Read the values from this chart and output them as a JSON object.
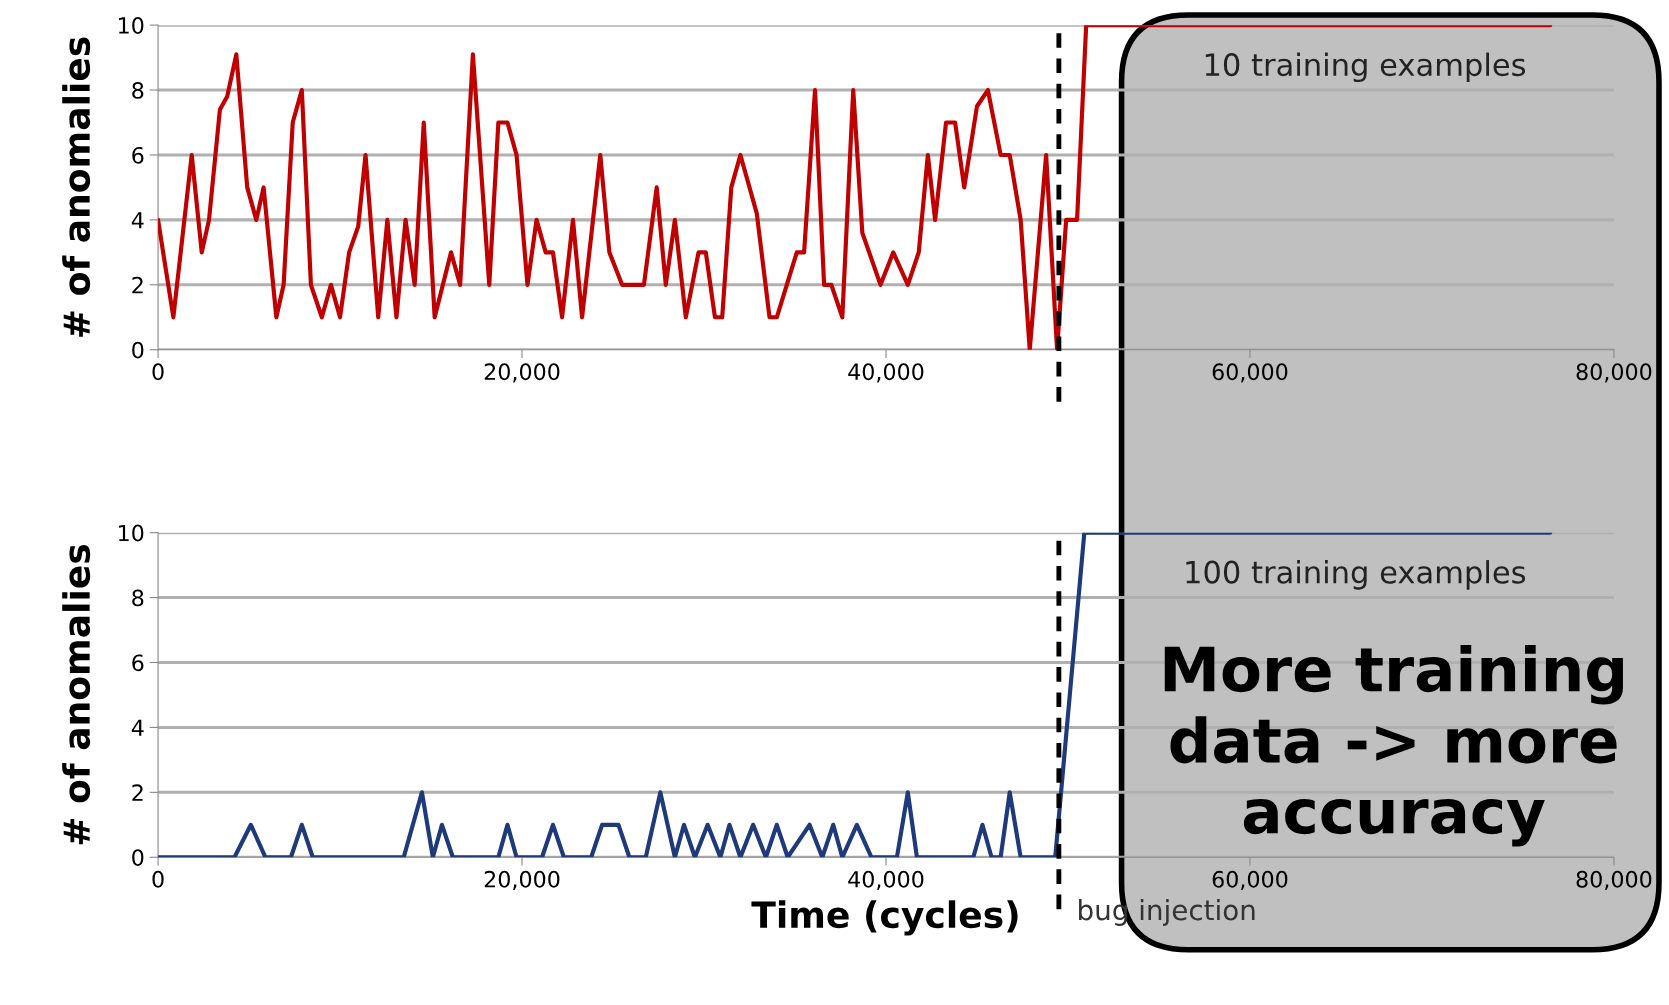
{
  "chart_data": [
    {
      "type": "line",
      "ylabel": "# of anomalies",
      "xlim": [
        0,
        80000
      ],
      "ylim": [
        0,
        10
      ],
      "xticks": [
        0,
        {
          "value": 20000,
          "label": "20,000"
        },
        {
          "value": 40000,
          "label": "40,000"
        },
        {
          "value": 60000,
          "label": "60,000"
        },
        {
          "value": 80000,
          "label": "80,000"
        }
      ],
      "yticks": [
        0,
        2,
        4,
        6,
        8,
        10
      ],
      "grid": "y",
      "series": [
        {
          "color": "#c00000",
          "x": [
            0,
            840,
            1850,
            2400,
            2800,
            3400,
            3800,
            4300,
            4900,
            5400,
            5800,
            6500,
            6900,
            7400,
            7900,
            8400,
            9000,
            9500,
            10000,
            10500,
            11000,
            11400,
            12100,
            12600,
            13100,
            13600,
            14100,
            14600,
            15200,
            16100,
            16600,
            17300,
            18200,
            18700,
            19200,
            19700,
            20300,
            20800,
            21300,
            21700,
            22200,
            22800,
            23300,
            24300,
            24800,
            25500,
            26700,
            27400,
            27900,
            28400,
            29000,
            29700,
            30100,
            30600,
            31000,
            31500,
            32000,
            32900,
            33600,
            34000,
            35100,
            35500,
            36100,
            36600,
            37000,
            37600,
            38200,
            38700,
            39700,
            40400,
            41200,
            41800,
            42300,
            42700,
            43300,
            43800,
            44300,
            45000,
            45600,
            46300,
            46800,
            47400,
            47900,
            48800,
            49400,
            49900,
            50500,
            51000,
            76500
          ],
          "values": [
            4,
            1,
            6,
            3,
            4,
            7.4,
            7.8,
            9.1,
            5,
            4,
            5,
            1,
            2,
            7,
            8,
            2,
            1,
            2,
            1,
            3,
            3.8,
            6,
            1,
            4,
            1,
            4,
            2,
            7,
            1,
            3,
            2,
            9.1,
            2,
            7,
            7,
            6,
            2,
            4,
            3,
            3,
            1,
            4,
            1,
            6,
            3,
            2,
            2,
            5,
            2,
            4,
            1,
            3,
            3,
            1,
            1,
            5,
            6,
            4.2,
            1,
            1,
            3,
            3,
            8,
            2,
            2,
            1,
            8,
            3.6,
            2,
            3,
            2,
            3,
            6,
            4,
            7,
            7,
            5,
            7.5,
            8,
            6,
            6,
            4,
            0,
            6,
            0,
            4,
            4,
            10,
            10
          ]
        }
      ],
      "ref_lines": [
        {
          "axis": "x",
          "value": 49500,
          "line_style": "dashed",
          "color": "#000000"
        }
      ],
      "annotations": [
        "10 training examples"
      ]
    },
    {
      "type": "line",
      "ylabel": "# of anomalies",
      "xlabel": "Time (cycles)",
      "xlim": [
        0,
        80000
      ],
      "ylim": [
        0,
        10
      ],
      "xticks": [
        0,
        {
          "value": 20000,
          "label": "20,000"
        },
        {
          "value": 40000,
          "label": "40,000"
        },
        {
          "value": 60000,
          "label": "60,000"
        },
        {
          "value": 80000,
          "label": "80,000"
        }
      ],
      "yticks": [
        0,
        2,
        4,
        6,
        8,
        10
      ],
      "grid": "y",
      "series": [
        {
          "color": "#1f3a7a",
          "x": [
            0,
            4200,
            5100,
            5900,
            7300,
            7900,
            8500,
            13500,
            14500,
            15100,
            15600,
            16200,
            18700,
            19200,
            19700,
            21100,
            21700,
            22300,
            23800,
            24400,
            25300,
            25900,
            26800,
            27600,
            28400,
            28900,
            29500,
            30200,
            30900,
            31400,
            32000,
            32700,
            33400,
            34000,
            34600,
            35800,
            36500,
            37100,
            37600,
            38400,
            39200,
            40600,
            41200,
            41700,
            44800,
            45300,
            45800,
            46300,
            46800,
            47400,
            49300,
            50900,
            76500
          ],
          "values": [
            0,
            0,
            1,
            0,
            0,
            1,
            0,
            0,
            2,
            0,
            1,
            0,
            0,
            1,
            0,
            0,
            1,
            0,
            0,
            1,
            1,
            0,
            0,
            2,
            0,
            1,
            0,
            1,
            0,
            1,
            0,
            1,
            0,
            1,
            0,
            1,
            0,
            1,
            0,
            1,
            0,
            0,
            2,
            0,
            0,
            1,
            0,
            0,
            2,
            0,
            0,
            10,
            10
          ]
        }
      ],
      "ref_lines": [
        {
          "axis": "x",
          "value": 49500,
          "line_style": "dashed",
          "color": "#000000",
          "label": "bug injection"
        }
      ],
      "annotations": [
        "100 training examples",
        "More training\ndata -> more\naccuracy"
      ]
    }
  ]
}
